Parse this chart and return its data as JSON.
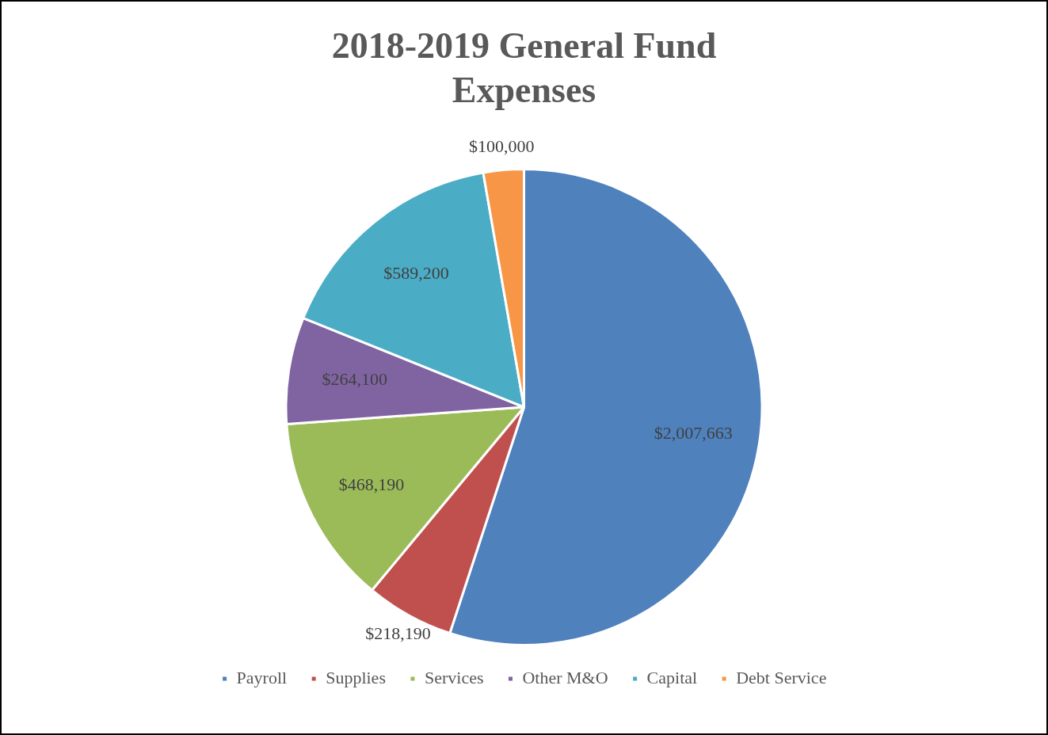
{
  "chart_data": {
    "type": "pie",
    "title": "2018-2019 General Fund Expenses",
    "categories": [
      "Payroll",
      "Supplies",
      "Services",
      "Other M&O",
      "Capital",
      "Debt Service"
    ],
    "values": [
      2007663,
      218190,
      468190,
      264100,
      589200,
      100000
    ],
    "colors": [
      "#4f81bd",
      "#c0504d",
      "#9bbb59",
      "#8064a2",
      "#4bacc6",
      "#f79646"
    ],
    "value_labels": [
      "$2,007,663",
      "$218,190",
      "$468,190",
      "$264,100",
      "$589,200",
      "$100,000"
    ],
    "legend": "bottom"
  }
}
